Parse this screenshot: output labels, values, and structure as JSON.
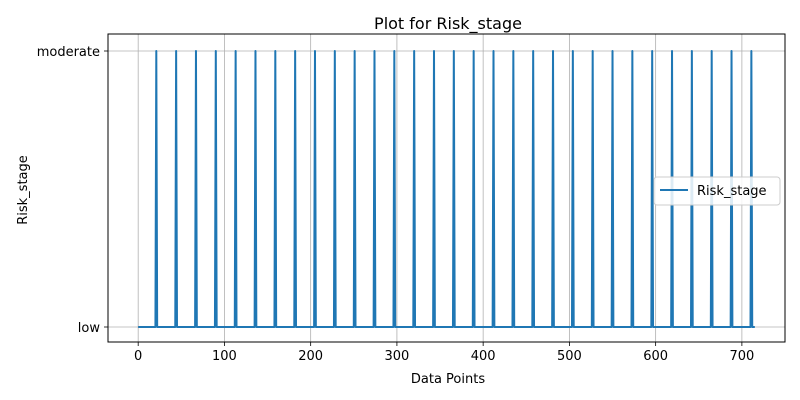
{
  "chart_data": {
    "type": "line",
    "title": "Plot for Risk_stage",
    "xlabel": "Data Points",
    "ylabel": "Risk_stage",
    "xlim": [
      -35,
      750
    ],
    "x_ticks": [
      0,
      100,
      200,
      300,
      400,
      500,
      600,
      700
    ],
    "y_categories": [
      "low",
      "moderate"
    ],
    "grid": true,
    "legend_position": "center-right",
    "series": [
      {
        "name": "Risk_stage",
        "color": "#1f77b4",
        "x_range": [
          0,
          715
        ],
        "baseline": "low",
        "peak": "moderate",
        "peak_x": [
          21,
          44,
          67,
          90,
          113,
          136,
          159,
          182,
          205,
          228,
          251,
          274,
          297,
          320,
          343,
          366,
          389,
          412,
          435,
          458,
          481,
          504,
          527,
          550,
          573,
          596,
          619,
          642,
          665,
          688,
          711
        ]
      }
    ]
  }
}
